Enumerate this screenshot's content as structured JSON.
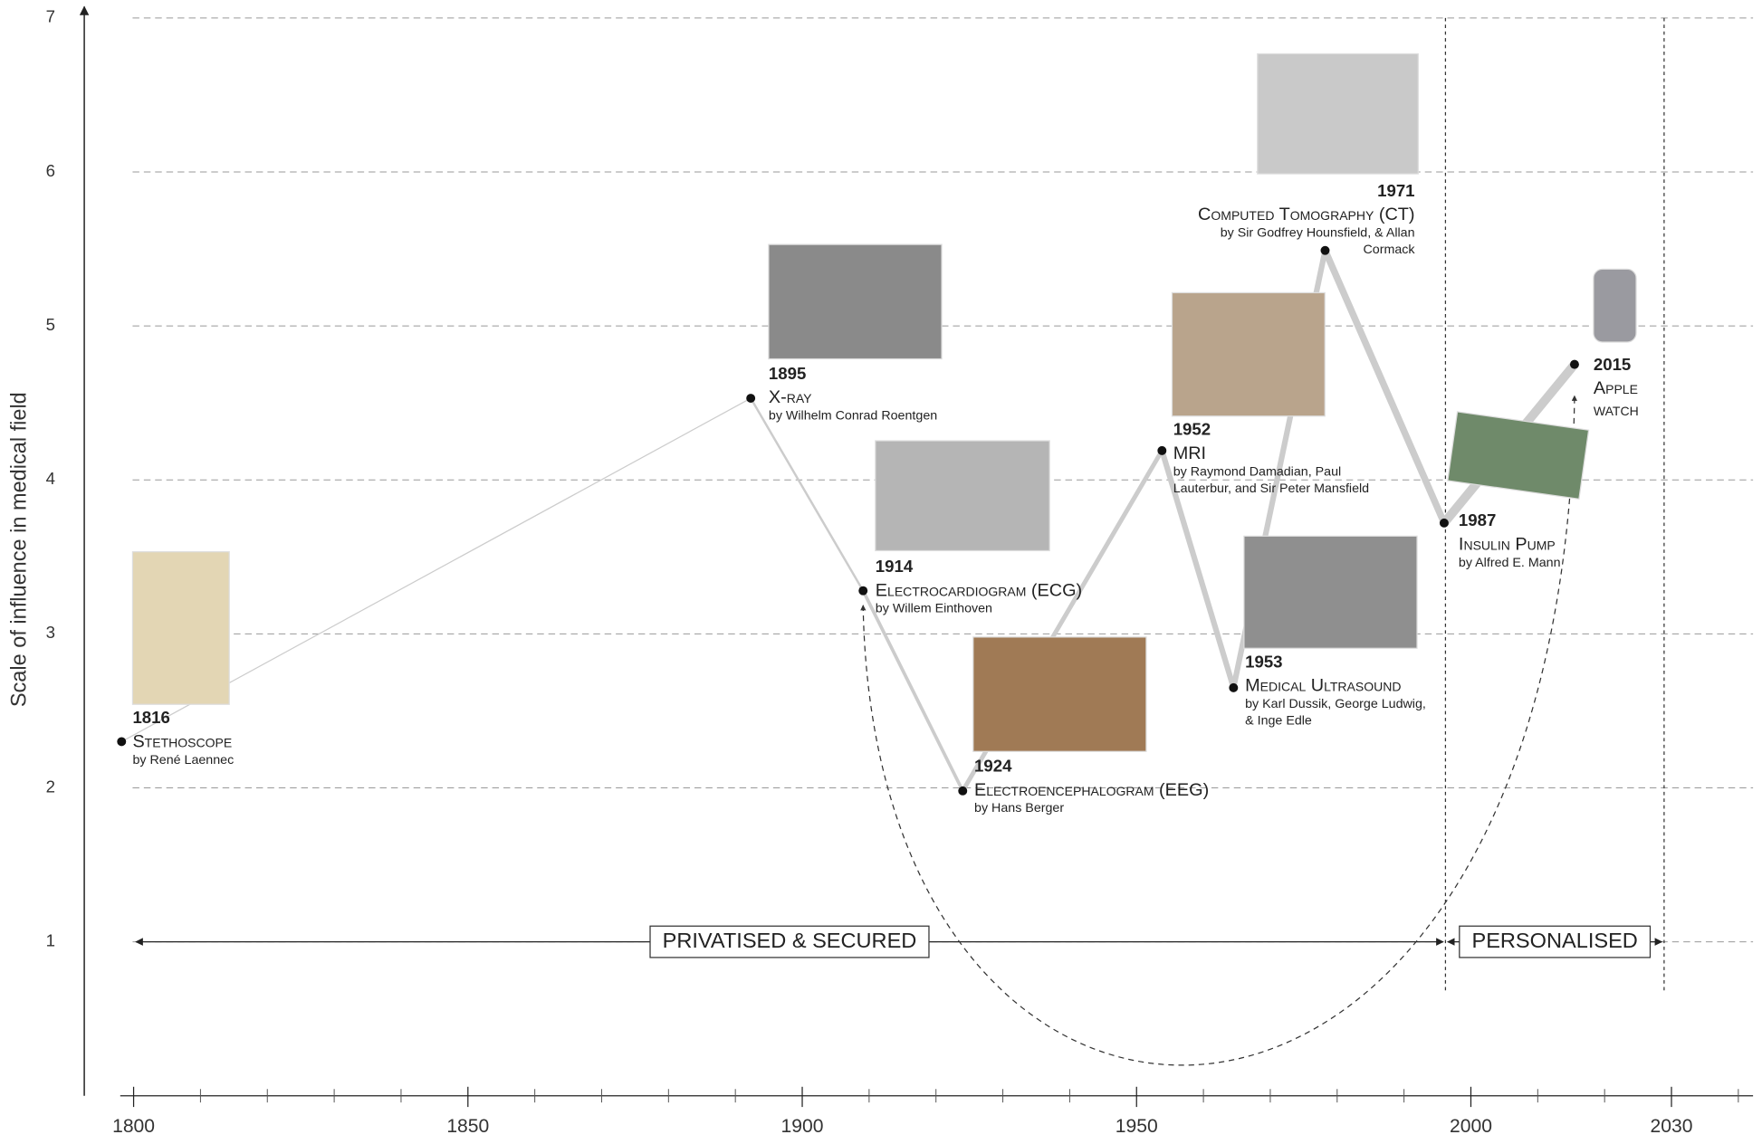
{
  "chart_data": {
    "type": "line",
    "y_label": "Scale of influence in medical field",
    "xlim": [
      1798,
      2042
    ],
    "ylim": [
      0,
      7
    ],
    "xticks": [
      1800,
      1850,
      1900,
      1950,
      2000,
      2030
    ],
    "xminorticks": [
      1810,
      1820,
      1830,
      1840,
      1860,
      1870,
      1880,
      1890,
      1910,
      1920,
      1930,
      1940,
      1960,
      1970,
      1980,
      1990,
      2010,
      2020,
      2040
    ],
    "yticks": [
      1,
      2,
      3,
      4,
      5,
      6,
      7
    ],
    "grid": true,
    "color": "#cccccc",
    "x": [
      1798.2,
      1892.3,
      1909.1,
      1924.0,
      1953.8,
      1964.5,
      1978.2,
      1996.0,
      2015.5
    ],
    "values": [
      2.3,
      4.53,
      3.28,
      1.98,
      4.19,
      2.65,
      5.49,
      3.72,
      4.75
    ],
    "events": [
      {
        "year": "1816",
        "name": [
          "Stethoscope"
        ],
        "by": [
          "by René Laennec"
        ]
      },
      {
        "year": "1895",
        "name": [
          "X-ray"
        ],
        "by": [
          "by Wilhelm Conrad Roentgen"
        ]
      },
      {
        "year": "1914",
        "name": [
          "Electrocardiogram (ECG)"
        ],
        "by": [
          "by Willem Einthoven"
        ]
      },
      {
        "year": "1924",
        "name": [
          "Electroencephalogram (EEG)"
        ],
        "by": [
          "by Hans Berger"
        ]
      },
      {
        "year": "1952",
        "name": [
          "MRI"
        ],
        "by": [
          "by Raymond Damadian, Paul",
          "Lauterbur, and Sir Peter Mansfield"
        ]
      },
      {
        "year": "1953",
        "name": [
          "Medical Ultrasound"
        ],
        "by": [
          "by Karl Dussik, George Ludwig,",
          "& Inge Edle"
        ]
      },
      {
        "year": "1971",
        "name": [
          "Computed Tomography (CT)"
        ],
        "by": [
          "by Sir Godfrey Hounsfield, & Allan",
          "Cormack"
        ]
      },
      {
        "year": "1987",
        "name": [
          "Insulin Pump"
        ],
        "by": [
          "by Alfred E. Mann"
        ]
      },
      {
        "year": "2015",
        "name": [
          "Apple",
          "watch"
        ],
        "by": []
      }
    ],
    "periods": [
      {
        "label": "PRIVATISED & SECURED",
        "start": 1800,
        "end": 1996.2,
        "level": 1
      },
      {
        "label": "PERSONALISED",
        "start": 1996.2,
        "end": 2028.9,
        "level": 1
      }
    ]
  }
}
